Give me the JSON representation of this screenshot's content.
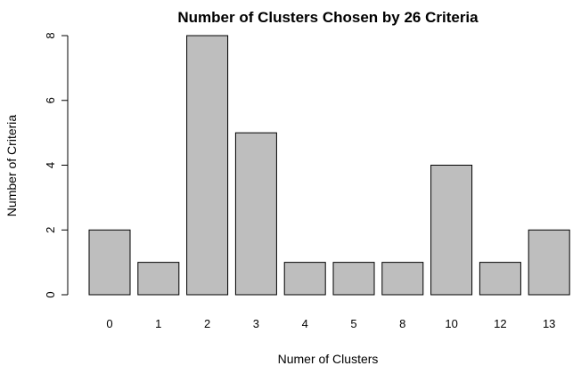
{
  "chart_data": {
    "type": "bar",
    "title": "Number of Clusters Chosen by 26 Criteria",
    "xlabel": "Numer of Clusters",
    "ylabel": "Number of Criteria",
    "categories": [
      "0",
      "1",
      "2",
      "3",
      "4",
      "5",
      "8",
      "10",
      "12",
      "13"
    ],
    "values": [
      2,
      1,
      8,
      5,
      1,
      1,
      1,
      4,
      1,
      2
    ],
    "ylim": [
      0,
      8
    ],
    "yticks": [
      "0",
      "2",
      "4",
      "6",
      "8"
    ],
    "grid": false,
    "bar_color": "#bebebe",
    "border_color": "#000000"
  }
}
